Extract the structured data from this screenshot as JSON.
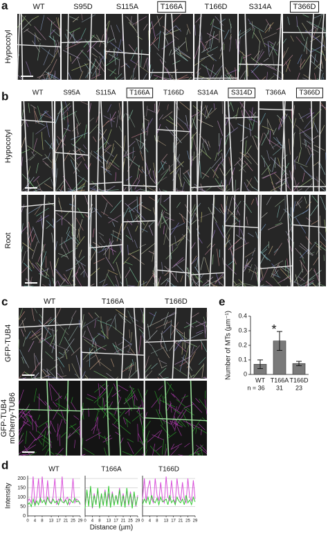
{
  "panels": {
    "a": {
      "letter": "a",
      "columns": [
        {
          "label": "WT"
        },
        {
          "label": "S95D"
        },
        {
          "label": "S115A"
        },
        {
          "label": "T166A",
          "boxed": true
        },
        {
          "label": "T166D"
        },
        {
          "label": "S314A"
        },
        {
          "label": "T366D",
          "boxed": true
        }
      ],
      "row_labels": [
        [
          "Hypocotyl"
        ]
      ]
    },
    "b": {
      "letter": "b",
      "columns": [
        {
          "label": "WT"
        },
        {
          "label": "S95A"
        },
        {
          "label": "S115A"
        },
        {
          "label": "T166A",
          "boxed": true
        },
        {
          "label": "T166D"
        },
        {
          "label": "S314A"
        },
        {
          "label": "S314D",
          "boxed": true
        },
        {
          "label": "T366A"
        },
        {
          "label": "T366D",
          "boxed": true
        }
      ],
      "row_labels": [
        [
          "Hypocotyl"
        ],
        [
          "Root"
        ]
      ]
    },
    "c": {
      "letter": "c",
      "columns": [
        {
          "label": "WT"
        },
        {
          "label": "T166A"
        },
        {
          "label": "T166D"
        }
      ],
      "row_labels": [
        [
          "GFP-TUB4"
        ],
        [
          "GFP-TUB4",
          "mCherry-TUB6"
        ]
      ]
    }
  },
  "chart_data": [
    {
      "type": "line",
      "panel_label": "d",
      "ylabel": "Intensity",
      "xlabel": "Distance (µm)",
      "xlim": [
        0,
        29
      ],
      "xticks": [
        0,
        4,
        8,
        13,
        17,
        21,
        25,
        29
      ],
      "ylim": [
        0,
        215
      ],
      "yticks": [
        0,
        50,
        100,
        150,
        200
      ],
      "grid": true,
      "x": [
        0,
        1,
        2,
        3,
        4,
        5,
        6,
        7,
        8,
        9,
        10,
        11,
        12,
        13,
        14,
        15,
        16,
        17,
        18,
        19,
        20,
        21,
        22,
        23,
        24,
        25,
        26,
        27,
        28,
        29
      ],
      "plots": [
        {
          "title": "WT",
          "series": [
            {
              "color": "#d94fd9",
              "values": [
                80,
                90,
                70,
                210,
                60,
                100,
                200,
                70,
                210,
                90,
                60,
                190,
                80,
                70,
                100,
                200,
                60,
                90,
                80,
                210,
                70,
                90,
                100,
                60,
                80,
                200,
                70,
                90,
                80,
                60
              ]
            },
            {
              "color": "#33cc33",
              "values": [
                60,
                70,
                50,
                90,
                55,
                80,
                60,
                95,
                70,
                85,
                60,
                100,
                75,
                65,
                90,
                70,
                80,
                60,
                95,
                75,
                70,
                85,
                60,
                90,
                80,
                70,
                95,
                75,
                80,
                65
              ]
            }
          ]
        },
        {
          "title": "T166A",
          "series": [
            {
              "color": "#d94fd9",
              "values": [
                50,
                130,
                60,
                150,
                40,
                120,
                60,
                140,
                50,
                110,
                55,
                140,
                60,
                120,
                50,
                130,
                60,
                110,
                70,
                150,
                50,
                120,
                60,
                140,
                55,
                130,
                60,
                120,
                50,
                110
              ]
            },
            {
              "color": "#33cc33",
              "values": [
                40,
                140,
                50,
                160,
                45,
                110,
                60,
                150,
                40,
                120,
                55,
                130,
                50,
                160,
                45,
                120,
                55,
                110,
                60,
                140,
                50,
                110,
                45,
                150,
                60,
                120,
                40,
                130,
                55,
                100
              ]
            }
          ]
        },
        {
          "title": "T166D",
          "series": [
            {
              "color": "#d94fd9",
              "values": [
                90,
                200,
                80,
                150,
                190,
                90,
                70,
                200,
                110,
                80,
                180,
                90,
                70,
                210,
                100,
                80,
                190,
                90,
                70,
                200,
                120,
                80,
                180,
                90,
                70,
                200,
                100,
                80,
                190,
                90
              ]
            },
            {
              "color": "#33cc33",
              "values": [
                60,
                90,
                70,
                100,
                60,
                110,
                80,
                70,
                95,
                60,
                100,
                75,
                80,
                90,
                60,
                110,
                70,
                85,
                60,
                100,
                80,
                70,
                90,
                60,
                110,
                70,
                85,
                60,
                100,
                75
              ]
            }
          ]
        }
      ]
    },
    {
      "type": "bar",
      "panel_label": "e",
      "ylabel": "Number of MTs (µm⁻¹)",
      "categories": [
        "WT",
        "T166A",
        "T166D"
      ],
      "n_labels": [
        "n = 36",
        "31",
        "23"
      ],
      "values": [
        0.07,
        0.23,
        0.075
      ],
      "errors": [
        0.03,
        0.065,
        0.015
      ],
      "color": "#7a7a7a",
      "ylim": [
        0,
        0.4
      ],
      "yticks": [
        0,
        0.1,
        0.2,
        0.3,
        0.4
      ],
      "annotations": [
        {
          "text": "*",
          "category": 1
        }
      ]
    }
  ]
}
